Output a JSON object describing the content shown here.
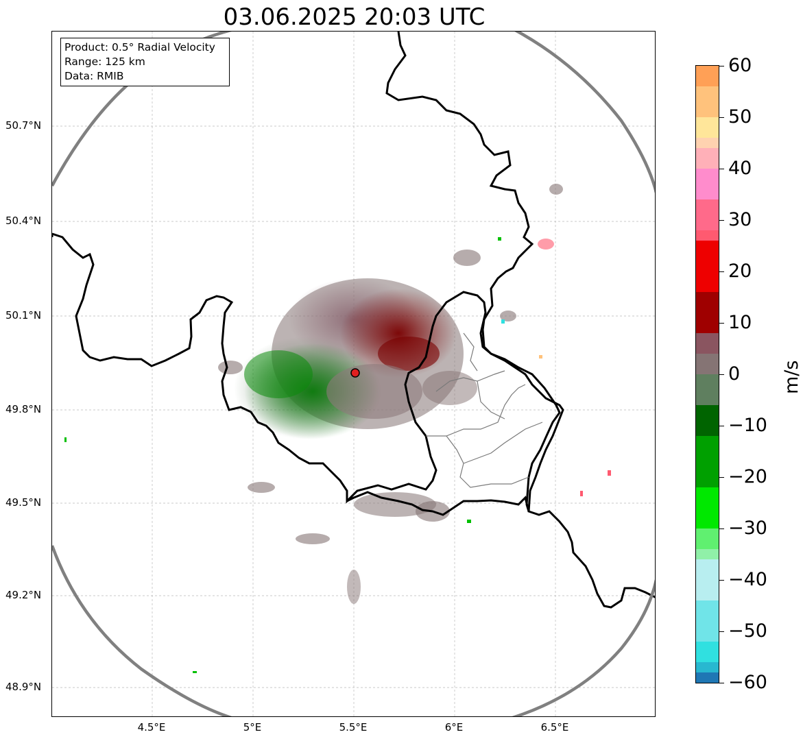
{
  "title": "03.06.2025 20:03 UTC",
  "info": {
    "product": "Product: 0.5° Radial Velocity",
    "range": "Range: 125 km",
    "data": "Data: RMIB"
  },
  "map": {
    "lon_range": [
      4.0,
      7.0
    ],
    "lat_range": [
      48.8,
      50.98
    ],
    "lat_ticks": [
      "50.7°N",
      "50.4°N",
      "50.1°N",
      "49.8°N",
      "49.5°N",
      "49.2°N",
      "48.9°N"
    ],
    "lon_ticks": [
      "4.5°E",
      "5°E",
      "5.5°E",
      "6°E",
      "6.5°E"
    ],
    "radar_site": {
      "lon": 5.505,
      "lat": 49.914
    },
    "range_ring_km": 125
  },
  "colorbar": {
    "label": "m/s",
    "ticks": [
      "60",
      "50",
      "40",
      "30",
      "20",
      "10",
      "0",
      "−10",
      "−20",
      "−30",
      "−40",
      "−50",
      "−60"
    ],
    "colors": {
      "orange": "#ffa056",
      "light_orange": "#ffc27c",
      "yellow": "#ffe69a",
      "peach": "#ffd2b0",
      "pink": "#ff8ccc",
      "salmon": "#ff5a70",
      "red": "#ff0000",
      "dark_red": "#7a0000",
      "mauve": "#8a5560",
      "grey": "#857474",
      "dark_green": "#006400",
      "green": "#00c000",
      "bright_green": "#00ff00",
      "mint": "#90f0a8",
      "pale_cyan": "#b8eef0",
      "cyan": "#30e0e0",
      "blue": "#1f77b4"
    }
  }
}
